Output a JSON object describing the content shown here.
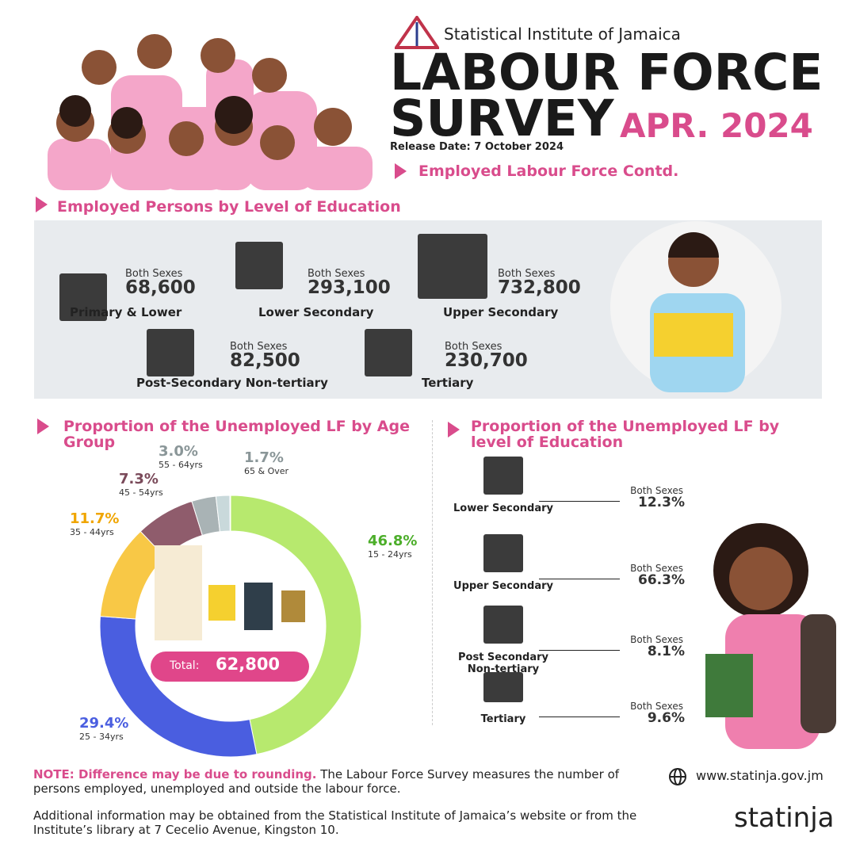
{
  "header": {
    "org": "Statistical Institute of Jamaica",
    "title_line1": "LABOUR FORCE",
    "title_line2": "SURVEY",
    "period": "APR. 2024",
    "release": "Release Date: 7 October 2024",
    "section": "Employed Labour Force Contd."
  },
  "education": {
    "title": "Employed Persons by Level of Education",
    "items": [
      {
        "sex": "Both Sexes",
        "value": "68,600",
        "name": "Primary & Lower"
      },
      {
        "sex": "Both Sexes",
        "value": "293,100",
        "name": "Lower Secondary"
      },
      {
        "sex": "Both Sexes",
        "value": "732,800",
        "name": "Upper Secondary"
      },
      {
        "sex": "Both Sexes",
        "value": "82,500",
        "name": "Post-Secondary Non-tertiary"
      },
      {
        "sex": "Both Sexes",
        "value": "230,700",
        "name": "Tertiary"
      }
    ]
  },
  "chart_data": {
    "type": "donut",
    "title": "Proportion of the Unemployed LF by Age Group",
    "categories": [
      "15 - 24yrs",
      "25 - 34yrs",
      "35 - 44yrs",
      "45 - 54yrs",
      "55 - 64yrs",
      "65 & Over"
    ],
    "values": [
      46.8,
      29.4,
      11.7,
      7.3,
      3.0,
      1.7
    ],
    "value_labels": [
      "46.8%",
      "29.4%",
      "11.7%",
      "7.3%",
      "3.0%",
      "1.7%"
    ],
    "colors": [
      "#b7e96e",
      "#4a5ee0",
      "#f8c846",
      "#8f5c6c",
      "#a9b3b5",
      "#c9d9db"
    ],
    "label_colors": [
      "#4cae2a",
      "#4a5ee0",
      "#f0a500",
      "#7a4a5a",
      "#8a9698",
      "#8a9698"
    ],
    "total_label": "Total:",
    "total": "62,800"
  },
  "unemployed_education": {
    "title": "Proportion of the Unemployed LF by level of Education",
    "items": [
      {
        "name": "Lower Secondary",
        "sex": "Both Sexes",
        "value": "12.3%"
      },
      {
        "name": "Upper Secondary",
        "sex": "Both Sexes",
        "value": "66.3%"
      },
      {
        "name": "Post Secondary Non-tertiary",
        "sex": "Both Sexes",
        "value": "8.1%"
      },
      {
        "name": "Tertiary",
        "sex": "Both Sexes",
        "value": "9.6%"
      }
    ]
  },
  "footer": {
    "note_bold": "NOTE: Difference may be due to rounding.",
    "note": "The Labour Force Survey measures the number of persons employed, unemployed and outside the labour force.",
    "info": "Additional information may be obtained from the Statistical Institute of Jamaica’s website or from the Institute’s library at 7 Cecelio Avenue, Kingston 10.",
    "website": "www.statinja.gov.jm",
    "brand": "statinja"
  }
}
